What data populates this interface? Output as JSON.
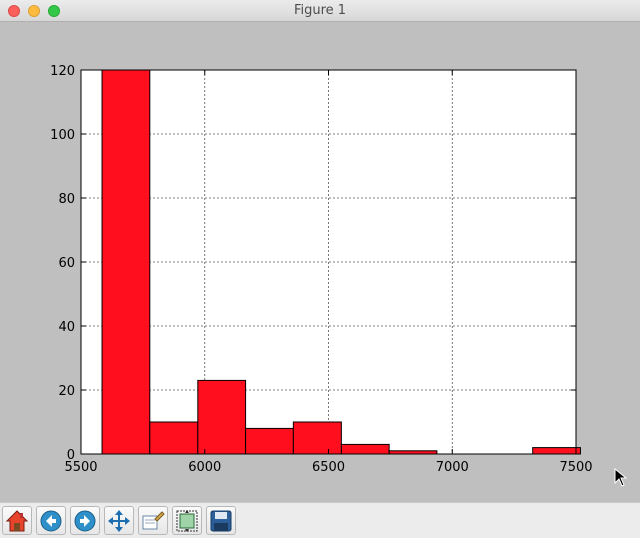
{
  "window": {
    "title": "Figure 1"
  },
  "toolbar": {
    "buttons": [
      {
        "name": "home-button",
        "icon": "home-icon"
      },
      {
        "name": "back-button",
        "icon": "back-arrow-icon"
      },
      {
        "name": "forward-button",
        "icon": "forward-arrow-icon"
      },
      {
        "name": "pan-button",
        "icon": "pan-arrows-icon"
      },
      {
        "name": "zoom-button",
        "icon": "zoom-rect-icon"
      },
      {
        "name": "subplots-button",
        "icon": "subplots-config-icon"
      },
      {
        "name": "save-button",
        "icon": "save-disk-icon"
      }
    ]
  },
  "colors": {
    "bar_fill": "#ff0f1e",
    "bar_edge": "#000000",
    "plot_bg": "#ffffff",
    "figure_bg": "#bfbfbf"
  },
  "chart_data": {
    "type": "bar",
    "title": "",
    "xlabel": "",
    "ylabel": "",
    "xlim": [
      5500,
      7500
    ],
    "ylim": [
      0,
      120
    ],
    "grid": true,
    "xticks": [
      5500,
      6000,
      6500,
      7000,
      7500
    ],
    "yticks": [
      0,
      20,
      40,
      60,
      80,
      100,
      120
    ],
    "bins": [
      {
        "x0": 5585,
        "x1": 5778,
        "count": 120
      },
      {
        "x0": 5778,
        "x1": 5972,
        "count": 10
      },
      {
        "x0": 5972,
        "x1": 6165,
        "count": 23
      },
      {
        "x0": 6165,
        "x1": 6358,
        "count": 8
      },
      {
        "x0": 6358,
        "x1": 6552,
        "count": 10
      },
      {
        "x0": 6552,
        "x1": 6745,
        "count": 3
      },
      {
        "x0": 6745,
        "x1": 6938,
        "count": 1
      },
      {
        "x0": 6938,
        "x1": 7132,
        "count": 0
      },
      {
        "x0": 7132,
        "x1": 7325,
        "count": 0
      },
      {
        "x0": 7325,
        "x1": 7518,
        "count": 2
      }
    ]
  }
}
